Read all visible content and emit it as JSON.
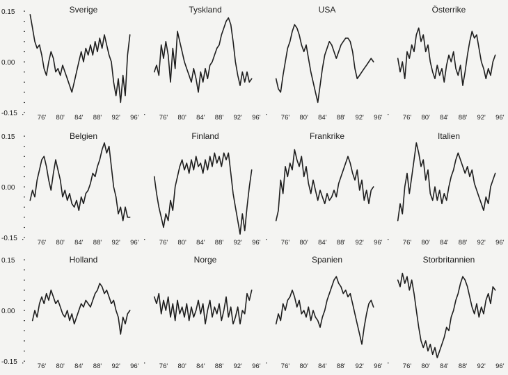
{
  "chart_data": {
    "type": "line",
    "layout": "small-multiples 3x4",
    "ylim": [
      -0.15,
      0.15
    ],
    "y_ticks": [
      {
        "value": 0.15,
        "label": "0.15"
      },
      {
        "value": 0.0,
        "label": "0.00"
      },
      {
        "value": -0.15,
        "label": "-0.15"
      }
    ],
    "xlim": [
      1973,
      1997
    ],
    "x_ticks": [
      {
        "value": 1976,
        "label": "76'"
      },
      {
        "value": 1980,
        "label": "80'"
      },
      {
        "value": 1984,
        "label": "84'"
      },
      {
        "value": 1988,
        "label": "88'"
      },
      {
        "value": 1992,
        "label": "92'"
      },
      {
        "value": 1996,
        "label": "96'"
      }
    ],
    "grid": false,
    "panels": [
      {
        "title": "Sverige",
        "x": [
          1973.5,
          1974,
          1974.5,
          1975,
          1975.5,
          1976,
          1976.5,
          1977,
          1977.5,
          1978,
          1978.5,
          1979,
          1979.5,
          1980,
          1980.5,
          1981,
          1981.5,
          1982,
          1982.5,
          1983,
          1983.5,
          1984,
          1984.5,
          1985,
          1985.5,
          1986,
          1986.5,
          1987,
          1987.5,
          1988,
          1988.5,
          1989,
          1989.5,
          1990,
          1990.5,
          1991,
          1991.5,
          1992,
          1992.5,
          1993,
          1993.5,
          1994,
          1994.5,
          1995
        ],
        "y": [
          0.14,
          0.1,
          0.06,
          0.04,
          0.05,
          0.02,
          -0.02,
          -0.04,
          0.0,
          0.03,
          0.01,
          -0.03,
          -0.02,
          -0.04,
          -0.01,
          -0.03,
          -0.05,
          -0.07,
          -0.09,
          -0.06,
          -0.03,
          0.0,
          0.03,
          0.0,
          0.04,
          0.02,
          0.05,
          0.02,
          0.06,
          0.03,
          0.07,
          0.04,
          0.08,
          0.05,
          0.02,
          0.0,
          -0.06,
          -0.1,
          -0.05,
          -0.12,
          -0.04,
          -0.1,
          0.02,
          0.08
        ]
      },
      {
        "title": "Tyskland",
        "x": [
          1974,
          1974.5,
          1975,
          1975.5,
          1976,
          1976.5,
          1977,
          1977.5,
          1978,
          1978.5,
          1979,
          1979.5,
          1980,
          1980.5,
          1981,
          1981.5,
          1982,
          1982.5,
          1983,
          1983.5,
          1984,
          1984.5,
          1985,
          1985.5,
          1986,
          1986.5,
          1987,
          1987.5,
          1988,
          1988.5,
          1989,
          1989.5,
          1990,
          1990.5,
          1991,
          1991.5,
          1992,
          1992.5,
          1993,
          1993.5,
          1994,
          1994.5,
          1995
        ],
        "y": [
          -0.03,
          -0.01,
          -0.04,
          0.05,
          0.01,
          0.06,
          0.02,
          -0.06,
          0.04,
          -0.02,
          0.09,
          0.06,
          0.03,
          0.0,
          -0.02,
          -0.04,
          -0.06,
          -0.02,
          -0.05,
          -0.09,
          -0.03,
          -0.06,
          -0.02,
          -0.05,
          -0.01,
          0.0,
          0.02,
          0.04,
          0.05,
          0.08,
          0.1,
          0.12,
          0.13,
          0.11,
          0.06,
          0.0,
          -0.04,
          -0.07,
          -0.03,
          -0.06,
          -0.03,
          -0.06,
          -0.05
        ]
      },
      {
        "title": "USA",
        "x": [
          1974,
          1974.5,
          1975,
          1975.5,
          1976,
          1976.5,
          1977,
          1977.5,
          1978,
          1978.5,
          1979,
          1979.5,
          1980,
          1980.5,
          1981,
          1981.5,
          1982,
          1982.5,
          1983,
          1983.5,
          1984,
          1984.5,
          1985,
          1985.5,
          1986,
          1986.5,
          1987,
          1987.5,
          1988,
          1988.5,
          1989,
          1989.5,
          1990,
          1990.5,
          1991,
          1991.5,
          1992,
          1992.5,
          1993,
          1993.5,
          1994,
          1994.5,
          1995
        ],
        "y": [
          -0.05,
          -0.08,
          -0.09,
          -0.04,
          0.0,
          0.04,
          0.06,
          0.09,
          0.11,
          0.1,
          0.08,
          0.05,
          0.03,
          0.05,
          0.01,
          -0.03,
          -0.06,
          -0.09,
          -0.12,
          -0.07,
          -0.02,
          0.02,
          0.04,
          0.06,
          0.05,
          0.03,
          0.01,
          0.03,
          0.05,
          0.06,
          0.07,
          0.07,
          0.06,
          0.03,
          -0.02,
          -0.05,
          -0.04,
          -0.03,
          -0.02,
          -0.01,
          0.0,
          0.01,
          0.0
        ]
      },
      {
        "title": "Österrike",
        "x": [
          1974,
          1974.5,
          1975,
          1975.5,
          1976,
          1976.5,
          1977,
          1977.5,
          1978,
          1978.5,
          1979,
          1979.5,
          1980,
          1980.5,
          1981,
          1981.5,
          1982,
          1982.5,
          1983,
          1983.5,
          1984,
          1984.5,
          1985,
          1985.5,
          1986,
          1986.5,
          1987,
          1987.5,
          1988,
          1988.5,
          1989,
          1989.5,
          1990,
          1990.5,
          1991,
          1991.5,
          1992,
          1992.5,
          1993,
          1993.5,
          1994,
          1994.5,
          1995
        ],
        "y": [
          0.01,
          -0.03,
          0.0,
          -0.05,
          0.03,
          0.01,
          0.05,
          0.03,
          0.08,
          0.1,
          0.06,
          0.08,
          0.03,
          0.05,
          0.0,
          -0.03,
          -0.05,
          -0.01,
          -0.04,
          -0.02,
          -0.06,
          -0.01,
          0.02,
          0.0,
          0.03,
          -0.02,
          -0.04,
          -0.01,
          -0.07,
          -0.03,
          0.02,
          0.06,
          0.09,
          0.07,
          0.08,
          0.04,
          0.0,
          -0.02,
          -0.05,
          -0.02,
          -0.04,
          0.0,
          0.02
        ]
      },
      {
        "title": "Belgien",
        "x": [
          1973.5,
          1974,
          1974.5,
          1975,
          1975.5,
          1976,
          1976.5,
          1977,
          1977.5,
          1978,
          1978.5,
          1979,
          1979.5,
          1980,
          1980.5,
          1981,
          1981.5,
          1982,
          1982.5,
          1983,
          1983.5,
          1984,
          1984.5,
          1985,
          1985.5,
          1986,
          1986.5,
          1987,
          1987.5,
          1988,
          1988.5,
          1989,
          1989.5,
          1990,
          1990.5,
          1991,
          1991.5,
          1992,
          1992.5,
          1993,
          1993.5,
          1994,
          1994.5,
          1995
        ],
        "y": [
          -0.04,
          -0.01,
          -0.03,
          0.02,
          0.05,
          0.08,
          0.09,
          0.06,
          0.02,
          -0.01,
          0.04,
          0.08,
          0.05,
          0.02,
          -0.03,
          -0.01,
          -0.04,
          -0.02,
          -0.05,
          -0.06,
          -0.04,
          -0.07,
          -0.03,
          -0.05,
          -0.02,
          -0.01,
          0.01,
          0.04,
          0.03,
          0.06,
          0.08,
          0.11,
          0.13,
          0.1,
          0.12,
          0.06,
          0.0,
          -0.03,
          -0.08,
          -0.06,
          -0.1,
          -0.06,
          -0.09,
          -0.09
        ]
      },
      {
        "title": "Finland",
        "x": [
          1974,
          1974.5,
          1975,
          1975.5,
          1976,
          1976.5,
          1977,
          1977.5,
          1978,
          1978.5,
          1979,
          1979.5,
          1980,
          1980.5,
          1981,
          1981.5,
          1982,
          1982.5,
          1983,
          1983.5,
          1984,
          1984.5,
          1985,
          1985.5,
          1986,
          1986.5,
          1987,
          1987.5,
          1988,
          1988.5,
          1989,
          1989.5,
          1990,
          1990.5,
          1991,
          1991.5,
          1992,
          1992.5,
          1993,
          1993.5,
          1994,
          1994.5,
          1995
        ],
        "y": [
          0.03,
          -0.02,
          -0.06,
          -0.09,
          -0.12,
          -0.08,
          -0.1,
          -0.04,
          -0.07,
          0.0,
          0.03,
          0.06,
          0.08,
          0.05,
          0.07,
          0.04,
          0.08,
          0.05,
          0.09,
          0.06,
          0.07,
          0.04,
          0.08,
          0.05,
          0.09,
          0.06,
          0.1,
          0.07,
          0.09,
          0.06,
          0.1,
          0.08,
          0.1,
          0.04,
          -0.02,
          -0.06,
          -0.1,
          -0.14,
          -0.08,
          -0.13,
          -0.06,
          0.0,
          0.05
        ]
      },
      {
        "title": "Frankrike",
        "x": [
          1974,
          1974.5,
          1975,
          1975.5,
          1976,
          1976.5,
          1977,
          1977.5,
          1978,
          1978.5,
          1979,
          1979.5,
          1980,
          1980.5,
          1981,
          1981.5,
          1982,
          1982.5,
          1983,
          1983.5,
          1984,
          1984.5,
          1985,
          1985.5,
          1986,
          1986.5,
          1987,
          1987.5,
          1988,
          1988.5,
          1989,
          1989.5,
          1990,
          1990.5,
          1991,
          1991.5,
          1992,
          1992.5,
          1993,
          1993.5,
          1994,
          1994.5,
          1995
        ],
        "y": [
          -0.1,
          -0.07,
          0.02,
          -0.02,
          0.06,
          0.03,
          0.07,
          0.05,
          0.11,
          0.08,
          0.06,
          0.09,
          0.03,
          0.06,
          0.01,
          -0.02,
          0.02,
          -0.01,
          -0.04,
          -0.01,
          -0.03,
          -0.05,
          -0.02,
          -0.04,
          -0.03,
          -0.01,
          -0.03,
          0.01,
          0.03,
          0.05,
          0.07,
          0.09,
          0.07,
          0.04,
          0.02,
          0.05,
          -0.01,
          0.02,
          -0.04,
          -0.01,
          -0.05,
          -0.01,
          0.0
        ]
      },
      {
        "title": "Italien",
        "x": [
          1974,
          1974.5,
          1975,
          1975.5,
          1976,
          1976.5,
          1977,
          1977.5,
          1978,
          1978.5,
          1979,
          1979.5,
          1980,
          1980.5,
          1981,
          1981.5,
          1982,
          1982.5,
          1983,
          1983.5,
          1984,
          1984.5,
          1985,
          1985.5,
          1986,
          1986.5,
          1987,
          1987.5,
          1988,
          1988.5,
          1989,
          1989.5,
          1990,
          1990.5,
          1991,
          1991.5,
          1992,
          1992.5,
          1993,
          1993.5,
          1994,
          1994.5,
          1995
        ],
        "y": [
          -0.1,
          -0.05,
          -0.08,
          0.0,
          0.04,
          -0.02,
          0.03,
          0.08,
          0.13,
          0.1,
          0.06,
          0.08,
          0.02,
          0.05,
          -0.02,
          -0.04,
          0.0,
          -0.04,
          -0.01,
          -0.05,
          -0.02,
          -0.04,
          0.0,
          0.03,
          0.05,
          0.08,
          0.1,
          0.08,
          0.06,
          0.04,
          0.06,
          0.03,
          0.05,
          0.01,
          -0.01,
          -0.03,
          -0.05,
          -0.07,
          -0.03,
          -0.05,
          0.0,
          0.02,
          0.04
        ]
      },
      {
        "title": "Holland",
        "x": [
          1974,
          1974.5,
          1975,
          1975.5,
          1976,
          1976.5,
          1977,
          1977.5,
          1978,
          1978.5,
          1979,
          1979.5,
          1980,
          1980.5,
          1981,
          1981.5,
          1982,
          1982.5,
          1983,
          1983.5,
          1984,
          1984.5,
          1985,
          1985.5,
          1986,
          1986.5,
          1987,
          1987.5,
          1988,
          1988.5,
          1989,
          1989.5,
          1990,
          1990.5,
          1991,
          1991.5,
          1992,
          1992.5,
          1993,
          1993.5,
          1994,
          1994.5,
          1995
        ],
        "y": [
          -0.03,
          0.0,
          -0.02,
          0.02,
          0.04,
          0.02,
          0.05,
          0.03,
          0.06,
          0.04,
          0.02,
          0.03,
          0.01,
          -0.01,
          -0.02,
          0.0,
          -0.03,
          -0.01,
          -0.04,
          -0.02,
          0.0,
          0.02,
          0.01,
          0.03,
          0.02,
          0.01,
          0.03,
          0.05,
          0.06,
          0.08,
          0.07,
          0.05,
          0.06,
          0.04,
          0.02,
          0.03,
          0.0,
          -0.02,
          -0.07,
          -0.02,
          -0.04,
          -0.01,
          0.0
        ]
      },
      {
        "title": "Norge",
        "x": [
          1974,
          1974.5,
          1975,
          1975.5,
          1976,
          1976.5,
          1977,
          1977.5,
          1978,
          1978.5,
          1979,
          1979.5,
          1980,
          1980.5,
          1981,
          1981.5,
          1982,
          1982.5,
          1983,
          1983.5,
          1984,
          1984.5,
          1985,
          1985.5,
          1986,
          1986.5,
          1987,
          1987.5,
          1988,
          1988.5,
          1989,
          1989.5,
          1990,
          1990.5,
          1991,
          1991.5,
          1992,
          1992.5,
          1993,
          1993.5,
          1994,
          1994.5,
          1995
        ],
        "y": [
          0.04,
          0.02,
          0.05,
          -0.01,
          0.03,
          0.0,
          0.04,
          -0.02,
          0.02,
          -0.03,
          0.03,
          -0.01,
          0.01,
          -0.02,
          0.02,
          -0.03,
          0.01,
          -0.02,
          0.0,
          0.03,
          -0.01,
          0.02,
          -0.04,
          0.0,
          0.03,
          -0.02,
          0.01,
          -0.01,
          0.02,
          -0.03,
          0.0,
          0.04,
          -0.02,
          0.01,
          -0.04,
          -0.02,
          0.01,
          -0.04,
          0.0,
          -0.01,
          0.05,
          0.03,
          0.06
        ]
      },
      {
        "title": "Spanien",
        "x": [
          1974,
          1974.5,
          1975,
          1975.5,
          1976,
          1976.5,
          1977,
          1977.5,
          1978,
          1978.5,
          1979,
          1979.5,
          1980,
          1980.5,
          1981,
          1981.5,
          1982,
          1982.5,
          1983,
          1983.5,
          1984,
          1984.5,
          1985,
          1985.5,
          1986,
          1986.5,
          1987,
          1987.5,
          1988,
          1988.5,
          1989,
          1989.5,
          1990,
          1990.5,
          1991,
          1991.5,
          1992,
          1992.5,
          1993,
          1993.5,
          1994,
          1994.5,
          1995
        ],
        "y": [
          -0.04,
          -0.01,
          -0.03,
          0.02,
          0.0,
          0.03,
          0.04,
          0.06,
          0.04,
          0.01,
          0.03,
          -0.01,
          0.0,
          -0.02,
          0.01,
          -0.03,
          0.0,
          -0.02,
          -0.03,
          -0.05,
          -0.02,
          0.0,
          0.03,
          0.05,
          0.07,
          0.09,
          0.1,
          0.08,
          0.07,
          0.05,
          0.06,
          0.04,
          0.05,
          0.02,
          -0.01,
          -0.04,
          -0.07,
          -0.1,
          -0.05,
          -0.01,
          0.02,
          0.03,
          0.01
        ]
      },
      {
        "title": "Storbritannien",
        "x": [
          1974,
          1974.5,
          1975,
          1975.5,
          1976,
          1976.5,
          1977,
          1977.5,
          1978,
          1978.5,
          1979,
          1979.5,
          1980,
          1980.5,
          1981,
          1981.5,
          1982,
          1982.5,
          1983,
          1983.5,
          1984,
          1984.5,
          1985,
          1985.5,
          1986,
          1986.5,
          1987,
          1987.5,
          1988,
          1988.5,
          1989,
          1989.5,
          1990,
          1990.5,
          1991,
          1991.5,
          1992,
          1992.5,
          1993,
          1993.5,
          1994,
          1994.5,
          1995
        ],
        "y": [
          0.09,
          0.07,
          0.11,
          0.08,
          0.1,
          0.06,
          0.09,
          0.05,
          0.0,
          -0.05,
          -0.09,
          -0.11,
          -0.09,
          -0.12,
          -0.1,
          -0.13,
          -0.11,
          -0.14,
          -0.12,
          -0.1,
          -0.08,
          -0.05,
          -0.06,
          -0.02,
          0.0,
          0.03,
          0.05,
          0.08,
          0.1,
          0.09,
          0.07,
          0.04,
          0.01,
          -0.01,
          0.02,
          -0.02,
          0.01,
          -0.01,
          0.03,
          0.05,
          0.02,
          0.07,
          0.06
        ]
      }
    ]
  }
}
